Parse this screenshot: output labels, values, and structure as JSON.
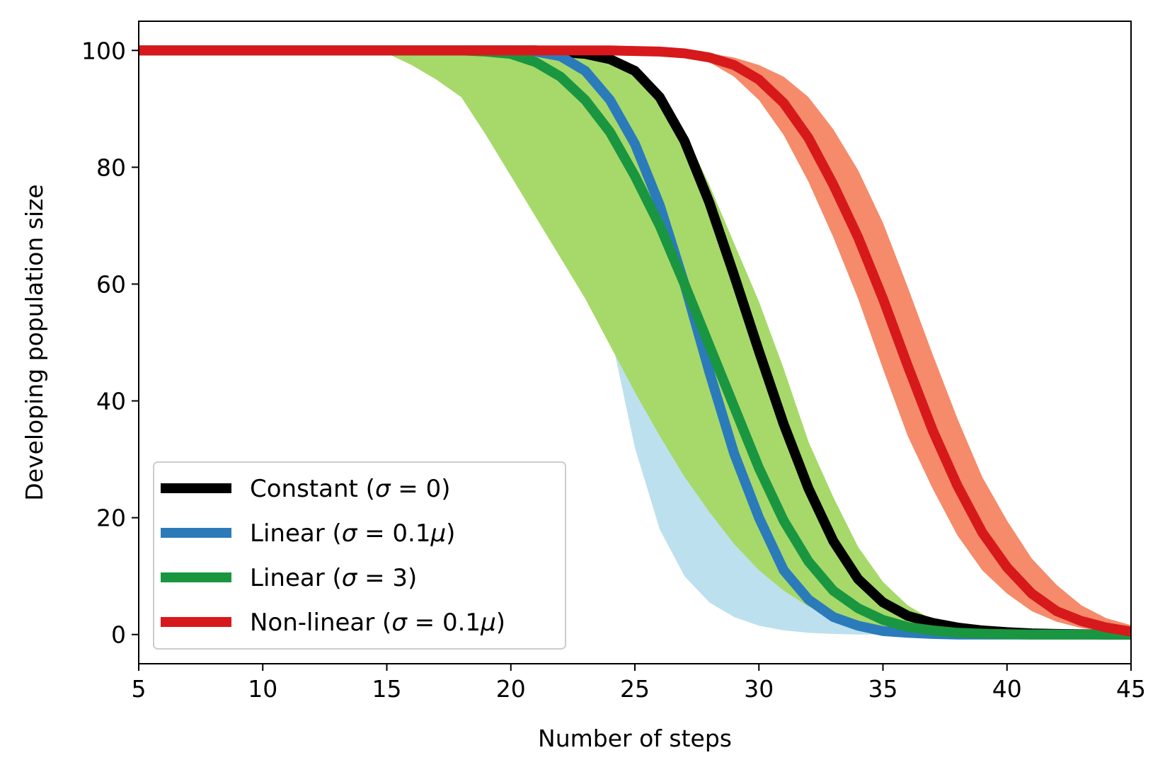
{
  "chart_data": {
    "type": "line",
    "title": "",
    "xlabel": "Number of steps",
    "ylabel": "Developing population size",
    "xlim": [
      5,
      45
    ],
    "ylim": [
      -5,
      105
    ],
    "xticks": [
      5,
      10,
      15,
      20,
      25,
      30,
      35,
      40,
      45
    ],
    "yticks": [
      0,
      20,
      40,
      60,
      80,
      100
    ],
    "grid": false,
    "legend_position": "lower-left",
    "series": [
      {
        "name": "Constant (σ = 0)",
        "legend_prefix": "Constant (",
        "legend_sigma": "σ",
        "legend_eq": " = 0)",
        "color": "#000000",
        "x": [
          5,
          14,
          15,
          16,
          17,
          18,
          19,
          20,
          21,
          22,
          23,
          24,
          25,
          26,
          27,
          28,
          29,
          30,
          31,
          32,
          33,
          34,
          35,
          36,
          37,
          38,
          39,
          40,
          41,
          42,
          43,
          44,
          45
        ],
        "y": [
          100,
          100,
          100,
          100,
          100,
          100,
          100,
          100,
          100,
          99.7,
          99.4,
          98.5,
          96.5,
          92,
          84.5,
          74,
          61.5,
          48.5,
          36,
          25,
          16,
          9.5,
          5.5,
          3.2,
          2,
          1.2,
          0.7,
          0.4,
          0.2,
          0.1,
          0.05,
          0,
          0
        ]
      },
      {
        "name": "Linear (σ = 0.1μ)",
        "legend_prefix": "Linear (",
        "legend_sigma": "σ",
        "legend_eq": " = 0.1",
        "legend_mu": "μ",
        "legend_suffix": ")",
        "color": "#2b7bba",
        "band_color": "#bde0ee",
        "x": [
          5,
          14,
          15,
          16,
          17,
          18,
          19,
          20,
          21,
          22,
          23,
          24,
          25,
          26,
          27,
          28,
          29,
          30,
          31,
          32,
          33,
          34,
          35,
          36,
          37,
          38,
          39,
          40,
          41,
          42,
          43,
          44,
          45
        ],
        "y": [
          100,
          100,
          100,
          100,
          100,
          100,
          100,
          100,
          99.8,
          99,
          96.5,
          91.5,
          84,
          73.5,
          60,
          45,
          31,
          20,
          11,
          6,
          3,
          1.5,
          0.6,
          0.3,
          0.1,
          0,
          0,
          0,
          0,
          0,
          0,
          0,
          0
        ],
        "band_lower": [
          100,
          100,
          100,
          100,
          100,
          100,
          100,
          99.5,
          97,
          91,
          78,
          52,
          32,
          18,
          10,
          5.5,
          3,
          1.5,
          0.7,
          0.3,
          0.1,
          0,
          0,
          0,
          0,
          0,
          0,
          0,
          0,
          0,
          0,
          0,
          0
        ],
        "band_upper": [
          100,
          100,
          100,
          100,
          100,
          100,
          100,
          100,
          100,
          100,
          99.8,
          99,
          97.5,
          93,
          86,
          77,
          62,
          48,
          34,
          22,
          13,
          7,
          3.5,
          1.5,
          0.5,
          0.2,
          0,
          0,
          0,
          0,
          0,
          0,
          0
        ]
      },
      {
        "name": "Linear (σ = 3)",
        "legend_prefix": "Linear (",
        "legend_sigma": "σ",
        "legend_eq": " = 3)",
        "color": "#1a9641",
        "band_color": "#a6d96a",
        "x": [
          5,
          14,
          15,
          16,
          17,
          18,
          19,
          20,
          21,
          22,
          23,
          24,
          25,
          26,
          27,
          28,
          29,
          30,
          31,
          32,
          33,
          34,
          35,
          36,
          37,
          38,
          39,
          40,
          41,
          42,
          43,
          44,
          45
        ],
        "y": [
          100,
          100,
          100,
          100,
          100,
          100,
          99.8,
          99.4,
          98,
          95.5,
          91.5,
          86,
          78.5,
          70,
          60,
          49.5,
          39,
          28.5,
          19.5,
          12.5,
          7.5,
          4.5,
          2.5,
          1.3,
          0.7,
          0.3,
          0.15,
          0.05,
          0,
          0,
          0,
          0,
          0
        ],
        "band_lower": [
          100,
          100,
          99.5,
          97.5,
          95,
          92,
          85.5,
          78.5,
          71.5,
          64.5,
          57.5,
          49.5,
          41.5,
          34,
          27,
          21,
          15.5,
          11,
          7.5,
          4.8,
          3,
          1.8,
          1,
          0.5,
          0.2,
          0.1,
          0,
          0,
          0,
          0,
          0,
          0,
          0
        ],
        "band_upper": [
          100,
          100,
          100,
          100,
          100,
          100,
          100,
          100,
          100,
          100,
          99.7,
          99,
          97,
          93,
          86,
          77,
          67,
          57,
          45.5,
          33,
          23.5,
          15,
          9,
          5,
          2.5,
          1.2,
          0.5,
          0.2,
          0.1,
          0,
          0,
          0,
          0
        ]
      },
      {
        "name": "Non-linear (σ = 0.1μ)",
        "legend_prefix": "Non-linear (",
        "legend_sigma": "σ",
        "legend_eq": " = 0.1",
        "legend_mu": "μ",
        "legend_suffix": ")",
        "color": "#d7191c",
        "band_color": "#f58b6a",
        "x": [
          5,
          20,
          21,
          22,
          23,
          24,
          25,
          26,
          27,
          28,
          29,
          30,
          31,
          32,
          33,
          34,
          35,
          36,
          37,
          38,
          39,
          40,
          41,
          42,
          43,
          44,
          45
        ],
        "y": [
          100,
          100,
          100,
          100,
          100,
          100,
          99.9,
          99.8,
          99.5,
          98.8,
          97.5,
          95,
          91,
          85,
          77,
          68,
          57.5,
          46,
          35,
          25.5,
          17.5,
          11.5,
          7,
          4,
          2.3,
          1.2,
          0.5
        ],
        "band_lower": [
          100,
          100,
          100,
          100,
          100,
          100,
          99.8,
          99.5,
          99,
          98,
          95.5,
          91.5,
          85.5,
          77.5,
          68,
          57.5,
          45.5,
          34,
          25,
          17,
          11,
          7,
          4,
          2.2,
          1.1,
          0.5,
          0.2
        ],
        "band_upper": [
          100,
          100,
          100,
          100,
          100,
          100,
          100,
          100,
          100,
          99.5,
          98.8,
          97.5,
          95.5,
          92,
          86.5,
          79.5,
          70.5,
          59.5,
          48,
          37,
          27,
          19.5,
          13,
          8.5,
          5,
          2.8,
          1.6
        ]
      }
    ]
  }
}
